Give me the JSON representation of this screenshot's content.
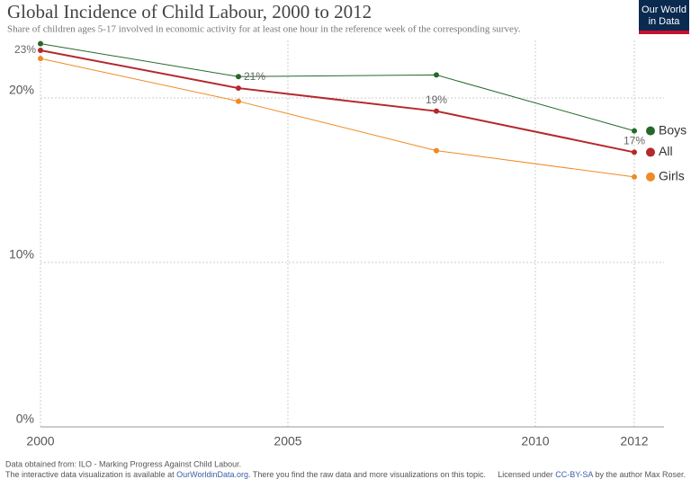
{
  "chart_data": {
    "type": "line",
    "title": "Global Incidence of Child Labour, 2000 to 2012",
    "subtitle": "Share of children ages 5-17 involved in economic activity for at least one hour in the reference week of the corresponding survey.",
    "x": [
      2000,
      2004,
      2008,
      2012
    ],
    "series": [
      {
        "name": "Boys",
        "color": "#24692a",
        "values": [
          23.3,
          21.3,
          21.4,
          18.0
        ]
      },
      {
        "name": "All",
        "color": "#b5282d",
        "values": [
          22.9,
          20.6,
          19.2,
          16.7
        ],
        "value_labels": [
          "23%",
          "21%",
          "19%",
          "17%"
        ]
      },
      {
        "name": "Girls",
        "color": "#ef8a24",
        "values": [
          22.4,
          19.8,
          16.8,
          15.2
        ]
      }
    ],
    "xlim": [
      2000,
      2012.6
    ],
    "xticks": [
      2000,
      2005,
      2010,
      2012
    ],
    "ylim": [
      0,
      23.5
    ],
    "yticks": [
      {
        "value": 0,
        "label": "0%"
      },
      {
        "value": 10,
        "label": "10%"
      },
      {
        "value": 20,
        "label": "20%"
      }
    ],
    "grid": true
  },
  "logo": [
    "Our World",
    "in Data"
  ],
  "footer": {
    "source": "Data obtained from: ILO - Marking Progress Against Child Labour.",
    "note_before": "The interactive data visualization is available at ",
    "note_link": "OurWorldinData.org",
    "note_after": ". There you find the raw data and more visualizations on this topic.",
    "license_before": "Licensed under ",
    "license_link": "CC-BY-SA",
    "license_after": " by the author Max Roser."
  }
}
